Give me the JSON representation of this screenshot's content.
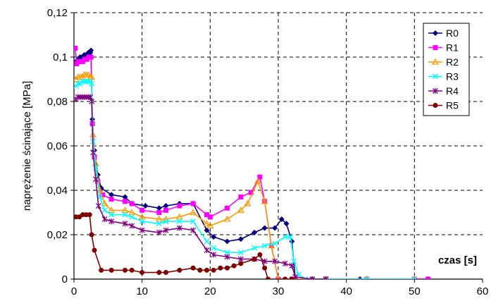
{
  "chart_data": {
    "type": "line",
    "title": "",
    "xlabel": "czas [s]",
    "ylabel": "naprężenie ścinające [MPa]",
    "xlim": [
      0,
      60
    ],
    "ylim": [
      0,
      0.12
    ],
    "x_ticks": [
      0,
      10,
      20,
      30,
      40,
      50,
      60
    ],
    "y_ticks": [
      0,
      0.02,
      0.04,
      0.06,
      0.08,
      0.1,
      0.12
    ],
    "x_tick_labels": [
      "0",
      "10",
      "20",
      "30",
      "40",
      "50",
      "60"
    ],
    "y_tick_labels": [
      "0",
      "0,02",
      "0,04",
      "0,06",
      "0,08",
      "0,1",
      "0,12"
    ],
    "grid": true,
    "legend_position": "top-right",
    "series": [
      {
        "name": "R0",
        "color": "#000080",
        "marker": "diamond",
        "points": [
          [
            0.3,
            0.098
          ],
          [
            0.6,
            0.099
          ],
          [
            0.9,
            0.1
          ],
          [
            1.2,
            0.1
          ],
          [
            1.5,
            0.101
          ],
          [
            1.8,
            0.101
          ],
          [
            2.1,
            0.102
          ],
          [
            2.4,
            0.102
          ],
          [
            2.5,
            0.103
          ],
          [
            2.7,
            0.072
          ],
          [
            3.0,
            0.058
          ],
          [
            3.5,
            0.047
          ],
          [
            4.0,
            0.041
          ],
          [
            5.5,
            0.038
          ],
          [
            7.5,
            0.037
          ],
          [
            8.5,
            0.034
          ],
          [
            10.5,
            0.033
          ],
          [
            12.5,
            0.032
          ],
          [
            13.5,
            0.033
          ],
          [
            15.5,
            0.034
          ],
          [
            17.5,
            0.034
          ],
          [
            19.5,
            0.022
          ],
          [
            20.5,
            0.019
          ],
          [
            22.5,
            0.017
          ],
          [
            24.5,
            0.018
          ],
          [
            26.5,
            0.021
          ],
          [
            28.0,
            0.023
          ],
          [
            29.5,
            0.023
          ],
          [
            30.5,
            0.027
          ],
          [
            31.2,
            0.025
          ],
          [
            32.0,
            0.017
          ],
          [
            32.5,
            0.0
          ],
          [
            35.0,
            0.0
          ],
          [
            42.0,
            0.0
          ],
          [
            50.0,
            0.0
          ],
          [
            52.0,
            0.0
          ]
        ]
      },
      {
        "name": "R1",
        "color": "#FF00FF",
        "marker": "square",
        "points": [
          [
            0.2,
            0.104
          ],
          [
            0.4,
            0.097
          ],
          [
            0.7,
            0.098
          ],
          [
            1.0,
            0.098
          ],
          [
            1.3,
            0.098
          ],
          [
            1.6,
            0.099
          ],
          [
            1.9,
            0.099
          ],
          [
            2.2,
            0.1
          ],
          [
            2.5,
            0.1
          ],
          [
            2.7,
            0.07
          ],
          [
            3.0,
            0.055
          ],
          [
            3.5,
            0.044
          ],
          [
            4.2,
            0.038
          ],
          [
            5.5,
            0.036
          ],
          [
            7.5,
            0.035
          ],
          [
            8.5,
            0.034
          ],
          [
            10.0,
            0.031
          ],
          [
            12.5,
            0.03
          ],
          [
            13.5,
            0.031
          ],
          [
            15.5,
            0.033
          ],
          [
            17.5,
            0.034
          ],
          [
            19.5,
            0.029
          ],
          [
            20.0,
            0.028
          ],
          [
            22.5,
            0.032
          ],
          [
            24.5,
            0.037
          ],
          [
            26.0,
            0.039
          ],
          [
            27.3,
            0.046
          ],
          [
            28.0,
            0.035
          ],
          [
            29.0,
            0.015
          ],
          [
            30.0,
            0.0
          ],
          [
            32.0,
            0.0
          ],
          [
            37.0,
            0.0
          ],
          [
            43.0,
            0.0
          ],
          [
            50.0,
            0.0
          ],
          [
            52.0,
            0.0
          ]
        ]
      },
      {
        "name": "R2",
        "color": "#FF9900",
        "marker": "triangle",
        "points": [
          [
            0.3,
            0.09
          ],
          [
            0.6,
            0.091
          ],
          [
            0.9,
            0.091
          ],
          [
            1.2,
            0.091
          ],
          [
            1.5,
            0.092
          ],
          [
            1.8,
            0.092
          ],
          [
            2.1,
            0.092
          ],
          [
            2.4,
            0.091
          ],
          [
            2.6,
            0.091
          ],
          [
            2.8,
            0.065
          ],
          [
            3.2,
            0.052
          ],
          [
            3.8,
            0.04
          ],
          [
            4.5,
            0.034
          ],
          [
            5.5,
            0.031
          ],
          [
            7.5,
            0.031
          ],
          [
            8.5,
            0.03
          ],
          [
            10.0,
            0.028
          ],
          [
            12.5,
            0.027
          ],
          [
            13.5,
            0.027
          ],
          [
            15.5,
            0.028
          ],
          [
            17.5,
            0.03
          ],
          [
            19.5,
            0.025
          ],
          [
            20.0,
            0.024
          ],
          [
            22.5,
            0.027
          ],
          [
            24.5,
            0.031
          ],
          [
            25.5,
            0.034
          ],
          [
            27.0,
            0.044
          ],
          [
            28.0,
            0.035
          ],
          [
            29.0,
            0.015
          ],
          [
            30.0,
            0.0
          ],
          [
            32.0,
            0.0
          ],
          [
            37.0,
            0.0
          ],
          [
            43.0,
            0.0
          ],
          [
            50.0,
            0.0
          ]
        ]
      },
      {
        "name": "R3",
        "color": "#00FFFF",
        "marker": "x",
        "points": [
          [
            0.3,
            0.087
          ],
          [
            0.6,
            0.088
          ],
          [
            0.9,
            0.088
          ],
          [
            1.2,
            0.089
          ],
          [
            1.5,
            0.089
          ],
          [
            1.8,
            0.089
          ],
          [
            2.1,
            0.089
          ],
          [
            2.4,
            0.089
          ],
          [
            2.6,
            0.088
          ],
          [
            2.8,
            0.062
          ],
          [
            3.2,
            0.05
          ],
          [
            3.8,
            0.037
          ],
          [
            4.5,
            0.031
          ],
          [
            5.5,
            0.029
          ],
          [
            7.5,
            0.029
          ],
          [
            8.5,
            0.028
          ],
          [
            10.0,
            0.026
          ],
          [
            12.5,
            0.025
          ],
          [
            13.5,
            0.026
          ],
          [
            15.5,
            0.026
          ],
          [
            17.5,
            0.026
          ],
          [
            19.5,
            0.017
          ],
          [
            20.5,
            0.014
          ],
          [
            22.5,
            0.012
          ],
          [
            24.5,
            0.012
          ],
          [
            26.5,
            0.014
          ],
          [
            28.0,
            0.015
          ],
          [
            29.5,
            0.016
          ],
          [
            31.0,
            0.019
          ],
          [
            31.8,
            0.019
          ],
          [
            32.3,
            0.008
          ],
          [
            33.0,
            0.002
          ],
          [
            34.0,
            0.0
          ],
          [
            37.0,
            0.0
          ],
          [
            43.0,
            0.0
          ],
          [
            50.0,
            0.0
          ]
        ]
      },
      {
        "name": "R4",
        "color": "#800080",
        "marker": "star",
        "points": [
          [
            0.3,
            0.081
          ],
          [
            0.6,
            0.082
          ],
          [
            0.9,
            0.082
          ],
          [
            1.2,
            0.082
          ],
          [
            1.5,
            0.082
          ],
          [
            1.8,
            0.082
          ],
          [
            2.1,
            0.082
          ],
          [
            2.4,
            0.082
          ],
          [
            2.6,
            0.08
          ],
          [
            2.8,
            0.057
          ],
          [
            3.2,
            0.045
          ],
          [
            3.6,
            0.033
          ],
          [
            4.5,
            0.027
          ],
          [
            5.5,
            0.026
          ],
          [
            7.5,
            0.025
          ],
          [
            8.5,
            0.024
          ],
          [
            10.0,
            0.022
          ],
          [
            12.5,
            0.021
          ],
          [
            13.5,
            0.022
          ],
          [
            15.5,
            0.023
          ],
          [
            17.5,
            0.022
          ],
          [
            19.5,
            0.013
          ],
          [
            20.5,
            0.011
          ],
          [
            22.5,
            0.01
          ],
          [
            24.5,
            0.009
          ],
          [
            26.5,
            0.009
          ],
          [
            28.0,
            0.008
          ],
          [
            29.5,
            0.008
          ],
          [
            31.0,
            0.007
          ],
          [
            32.0,
            0.006
          ],
          [
            32.5,
            0.001
          ],
          [
            35.0,
            0.0
          ],
          [
            37.0,
            0.0
          ]
        ]
      },
      {
        "name": "R5",
        "color": "#800000",
        "marker": "circle",
        "points": [
          [
            0.3,
            0.028
          ],
          [
            0.8,
            0.028
          ],
          [
            1.3,
            0.029
          ],
          [
            1.8,
            0.029
          ],
          [
            2.3,
            0.029
          ],
          [
            2.6,
            0.02
          ],
          [
            3.0,
            0.013
          ],
          [
            4.0,
            0.004
          ],
          [
            5.5,
            0.004
          ],
          [
            7.5,
            0.004
          ],
          [
            8.5,
            0.004
          ],
          [
            10.0,
            0.003
          ],
          [
            12.5,
            0.003
          ],
          [
            13.5,
            0.003
          ],
          [
            15.5,
            0.004
          ],
          [
            17.5,
            0.005
          ],
          [
            18.5,
            0.004
          ],
          [
            19.5,
            0.004
          ],
          [
            20.5,
            0.004
          ],
          [
            21.5,
            0.005
          ],
          [
            22.5,
            0.005
          ],
          [
            23.5,
            0.006
          ],
          [
            24.5,
            0.007
          ],
          [
            26.5,
            0.009
          ],
          [
            27.3,
            0.011
          ],
          [
            28.0,
            0.005
          ],
          [
            28.5,
            0.0
          ],
          [
            31.0,
            0.0
          ],
          [
            32.0,
            0.0
          ]
        ]
      }
    ]
  }
}
